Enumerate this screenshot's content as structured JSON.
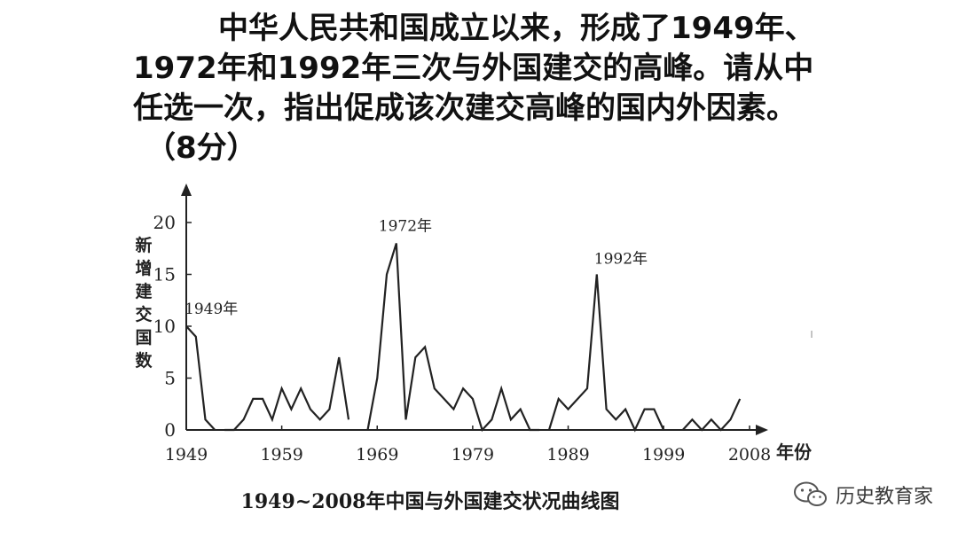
{
  "question": {
    "line1": "中华人民共和国成立以来，形成了1949年、",
    "line2": "1972年和1992年三次与外国建交的高峰。请从中",
    "line3": "任选一次，指出促成该次建交高峰的国内外因素。",
    "line4": "（8分）"
  },
  "watermark": {
    "icon": "wechat-icon",
    "text": "历史教育家"
  },
  "chart_data": {
    "type": "line",
    "caption": "1949~2008年中国与外国建交状况曲线图",
    "xlabel": "年份",
    "ylabel": "新增建交国数",
    "xlim": [
      1949,
      2008
    ],
    "ylim": [
      0,
      20
    ],
    "xticks": [
      "1949",
      "1959",
      "1969",
      "1979",
      "1989",
      "1999",
      "2008"
    ],
    "yticks": [
      "0",
      "5",
      "10",
      "15",
      "20"
    ],
    "grid": false,
    "line_color": "#222222",
    "segments": [
      {
        "x": [
          1949,
          1950,
          1951,
          1952
        ],
        "y": [
          10,
          9,
          1,
          0
        ]
      },
      {
        "x": [
          1953,
          1954,
          1955,
          1956,
          1957,
          1958,
          1959,
          1960,
          1961,
          1962,
          1963,
          1964,
          1965,
          1966
        ],
        "y": [
          0,
          0,
          1,
          3,
          3,
          1,
          4,
          2,
          4,
          2,
          1,
          2,
          7,
          1
        ]
      },
      {
        "x": [
          1968,
          1969,
          1970,
          1971,
          1972,
          1973,
          1974,
          1975,
          1976,
          1977,
          1978,
          1979,
          1980,
          1981,
          1982,
          1983,
          1984,
          1985,
          1986
        ],
        "y": [
          0,
          5,
          15,
          18,
          1,
          7,
          8,
          4,
          3,
          2,
          4,
          3,
          0,
          1,
          4,
          1,
          2,
          0,
          0
        ]
      },
      {
        "x": [
          1987,
          1988,
          1989,
          1990,
          1991,
          1992,
          1993,
          1994,
          1995,
          1996,
          1997,
          1998,
          1999
        ],
        "y": [
          0,
          3,
          2,
          3,
          4,
          15,
          2,
          1,
          2,
          0,
          2,
          2,
          0
        ]
      },
      {
        "x": [
          2001,
          2002,
          2003,
          2004,
          2005,
          2006,
          2007
        ],
        "y": [
          0,
          1,
          0,
          1,
          0,
          1,
          3
        ]
      }
    ],
    "annotations": [
      {
        "text": "1949年",
        "x": 1949,
        "y": 10
      },
      {
        "text": "1972年",
        "x": 1971,
        "y": 18
      },
      {
        "text": "1992年",
        "x": 1992,
        "y": 15
      }
    ]
  }
}
